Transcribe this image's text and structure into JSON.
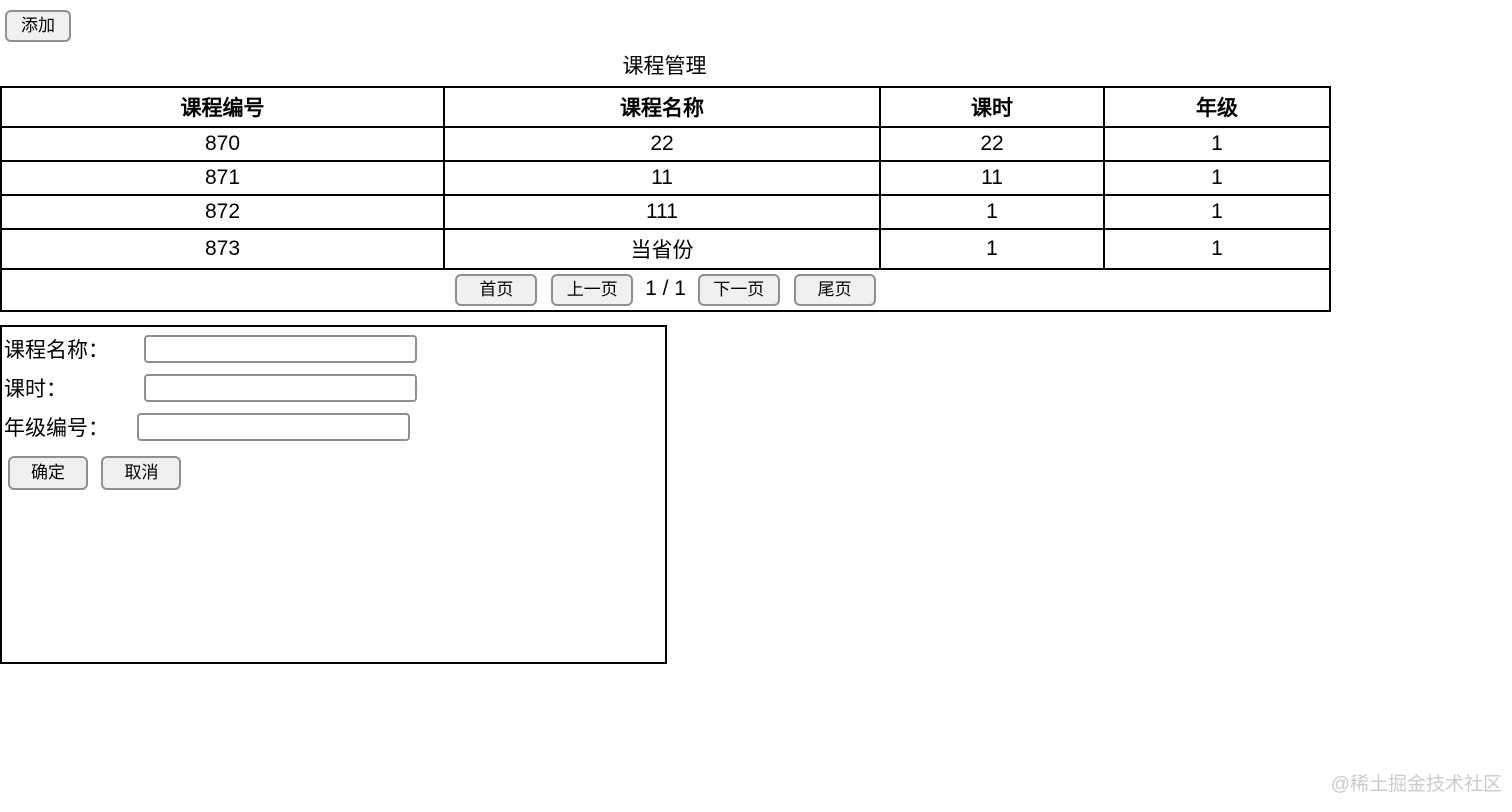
{
  "toolbar": {
    "add_label": "添加"
  },
  "page_title": "课程管理",
  "table": {
    "headers": [
      "课程编号",
      "课程名称",
      "课时",
      "年级"
    ],
    "rows": [
      [
        "870",
        "22",
        "22",
        "1"
      ],
      [
        "871",
        "11",
        "11",
        "1"
      ],
      [
        "872",
        "111",
        "1",
        "1"
      ],
      [
        "873",
        "当省份",
        "1",
        "1"
      ]
    ],
    "pagination": {
      "first": "首页",
      "prev": "上一页",
      "indicator": "1 / 1",
      "next": "下一页",
      "last": "尾页"
    }
  },
  "form": {
    "course_name_label": "课程名称：",
    "hours_label": "课时：",
    "grade_label": "年级编号：",
    "course_name_value": "",
    "hours_value": "",
    "grade_value": "",
    "ok_label": "确定",
    "cancel_label": "取消"
  },
  "watermark": "@稀土掘金技术社区",
  "colors": {
    "table_border": "#000000",
    "button_bg": "#f0f0f0",
    "button_border": "#8f8f8f",
    "watermark_text": "#c9cbcd"
  }
}
